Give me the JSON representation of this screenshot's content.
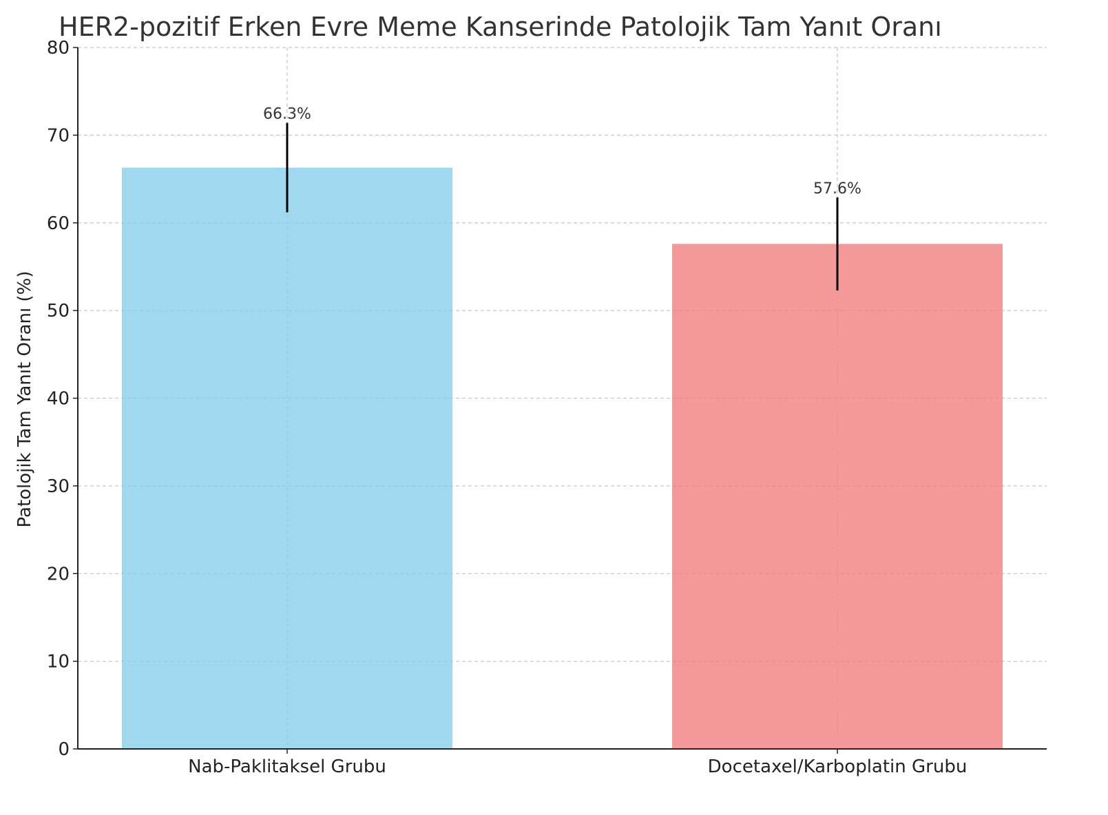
{
  "chart_data": {
    "type": "bar",
    "title": "HER2-pozitif Erken Evre Meme Kanserinde Patolojik Tam Yanıt Oranı",
    "xlabel": "",
    "ylabel": "Patolojik Tam Yanıt Oranı (%)",
    "categories": [
      "Nab-Paklitaksel Grubu",
      "Docetaxel/Karboplatin Grubu"
    ],
    "values": [
      66.3,
      57.6
    ],
    "errors": [
      5.1,
      5.3
    ],
    "data_labels": [
      "66.3%",
      "57.6%"
    ],
    "colors": [
      "#87ceeb",
      "#f08080"
    ],
    "ylim": [
      0,
      80
    ],
    "yticks": [
      0,
      10,
      20,
      30,
      40,
      50,
      60,
      70,
      80
    ],
    "grid": true,
    "legend": "none"
  }
}
